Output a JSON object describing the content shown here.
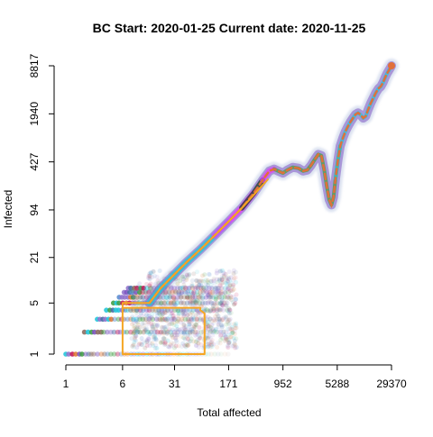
{
  "chart_data": {
    "type": "scatter",
    "title": "BC Start:  2020-01-25   Current date:  2020-11-25",
    "xlabel": "Total affected",
    "ylabel": "Infected",
    "x_scale": "log",
    "y_scale": "log",
    "xlim": [
      1,
      29370
    ],
    "ylim": [
      1,
      8817
    ],
    "x_ticks": [
      1,
      6,
      31,
      171,
      952,
      5288,
      29370
    ],
    "y_ticks": [
      1,
      5,
      21,
      94,
      427,
      1940,
      8817
    ],
    "grid": false,
    "legend": "none",
    "colors": {
      "trajectory": "#f5a623",
      "ensemble_cool": "#5b8fd1",
      "ensemble_magenta": "#e040fb",
      "ensemble_cyan": "#26c6da",
      "ensemble_purple": "#7e57c2",
      "ensemble_green": "#43a047",
      "ensemble_dark": "#1b3a2a",
      "observed_ends": "#e0703a"
    },
    "series": [
      {
        "kind": "trajectory",
        "x": [
          6,
          6,
          70,
          70,
          80,
          80,
          6,
          6,
          14,
          20,
          30,
          45,
          70,
          110,
          170,
          260,
          400,
          600
        ],
        "y": [
          5,
          4.3,
          4.3,
          4,
          3.6,
          1,
          1,
          5,
          5,
          8,
          12,
          18,
          27,
          42,
          65,
          100,
          160,
          250
        ]
      },
      {
        "kind": "ensemble-band",
        "x": [
          14,
          20,
          30,
          45,
          70,
          110,
          170,
          260,
          380,
          500,
          620,
          720,
          820,
          950,
          1100,
          1300,
          1550,
          1800,
          2050,
          2300,
          2600,
          2900,
          3200,
          3500,
          3800,
          4100,
          4400,
          4700,
          5000,
          5400,
          5800,
          6300,
          6800,
          7400,
          8000,
          8700,
          9400,
          10200,
          11000,
          12000,
          13000,
          14000,
          15200,
          16500,
          18000,
          19500,
          21000,
          22500,
          24000,
          25500,
          27000,
          28500,
          29370
        ],
        "y": [
          5,
          8,
          12,
          18,
          27,
          42,
          65,
          100,
          160,
          240,
          320,
          340,
          320,
          300,
          330,
          360,
          350,
          320,
          330,
          380,
          460,
          540,
          520,
          330,
          200,
          130,
          110,
          140,
          250,
          450,
          700,
          900,
          1100,
          1300,
          1500,
          1700,
          1900,
          2000,
          1900,
          1700,
          1800,
          2200,
          2700,
          3200,
          3800,
          4300,
          4600,
          5200,
          6100,
          6900,
          7600,
          8300,
          8817
        ]
      }
    ]
  }
}
